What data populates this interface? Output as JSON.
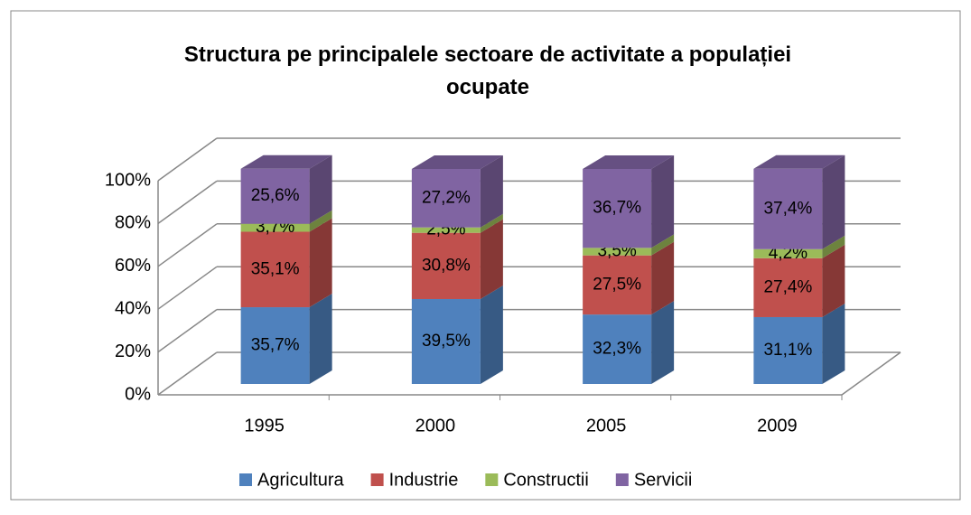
{
  "chart_data": {
    "type": "bar3d_stacked",
    "title": "Structura pe principalele sectoare de activitate a populației ocupate",
    "categories": [
      "1995",
      "2000",
      "2005",
      "2009"
    ],
    "series": [
      {
        "name": "Agricultura",
        "color": "#4f81bd",
        "values": [
          35.7,
          39.5,
          32.3,
          31.1
        ],
        "value_labels": [
          "35,7%",
          "39,5%",
          "32,3%",
          "31,1%"
        ]
      },
      {
        "name": "Industrie",
        "color": "#c0504d",
        "values": [
          35.1,
          30.8,
          27.5,
          27.4
        ],
        "value_labels": [
          "35,1%",
          "30,8%",
          "27,5%",
          "27,4%"
        ]
      },
      {
        "name": "Constructii",
        "color": "#9bbb59",
        "values": [
          3.7,
          2.5,
          3.5,
          4.2
        ],
        "value_labels": [
          "3,7%",
          "2,5%",
          "3,5%",
          "4,2%"
        ]
      },
      {
        "name": "Servicii",
        "color": "#8064a2",
        "values": [
          25.6,
          27.2,
          36.7,
          37.4
        ],
        "value_labels": [
          "25,6%",
          "27,2%",
          "36,7%",
          "37,4%"
        ]
      }
    ],
    "ylim": [
      0,
      100
    ],
    "yticks": [
      {
        "value": 0,
        "label": "0%"
      },
      {
        "value": 20,
        "label": "20%"
      },
      {
        "value": 40,
        "label": "40%"
      },
      {
        "value": 60,
        "label": "60%"
      },
      {
        "value": 80,
        "label": "80%"
      },
      {
        "value": 100,
        "label": "100%"
      }
    ],
    "grid": true,
    "legend": "bottom"
  }
}
